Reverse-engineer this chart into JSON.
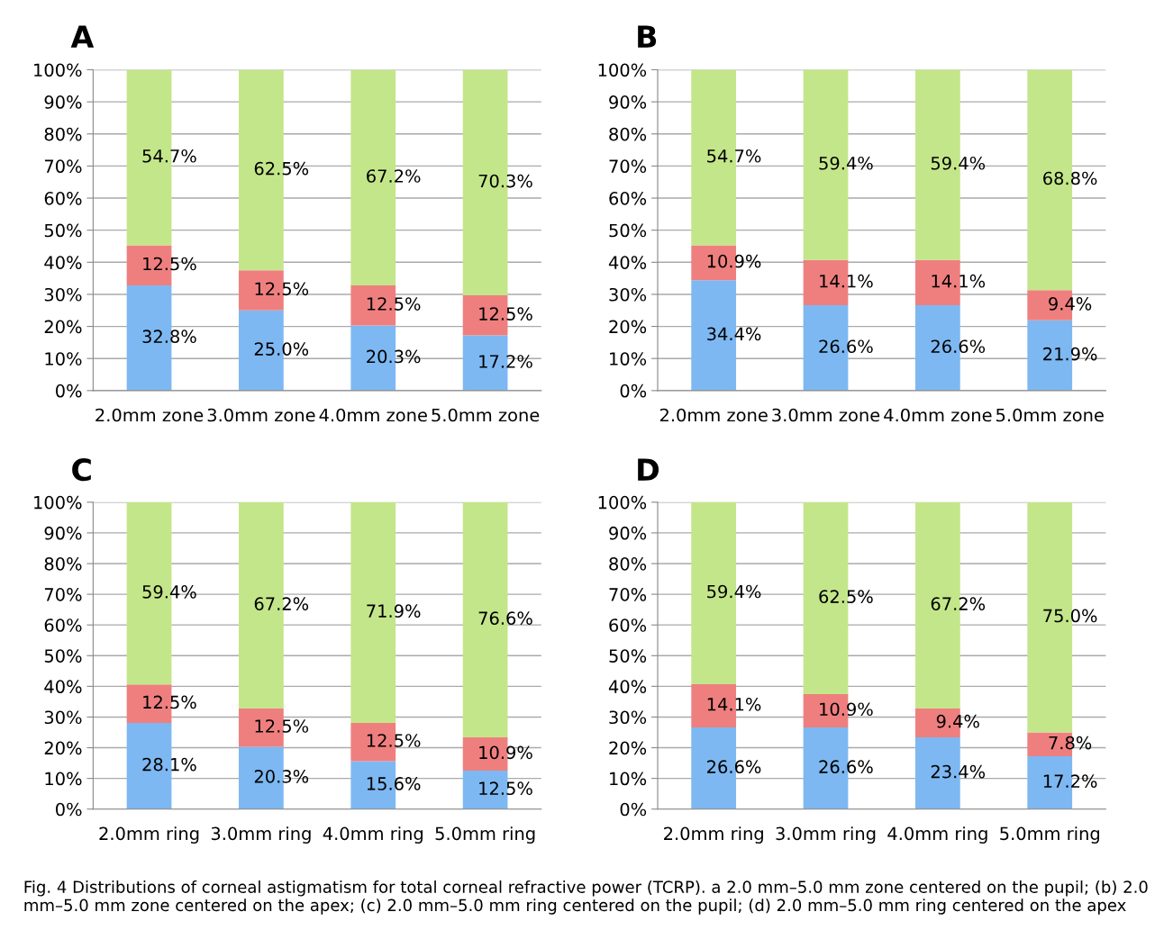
{
  "chart_data": [
    {
      "type": "bar",
      "stacked": true,
      "title": "A",
      "categories": [
        "2.0mm zone",
        "3.0mm zone",
        "4.0mm zone",
        "5.0mm zone"
      ],
      "ylim": [
        0,
        100
      ],
      "yticks": [
        {
          "value": 0,
          "label": "0%"
        },
        {
          "value": 10,
          "label": "10%"
        },
        {
          "value": 20,
          "label": "20%"
        },
        {
          "value": 30,
          "label": "30%"
        },
        {
          "value": 40,
          "label": "40%"
        },
        {
          "value": 50,
          "label": "50%"
        },
        {
          "value": 60,
          "label": "60%"
        },
        {
          "value": 70,
          "label": "70%"
        },
        {
          "value": 80,
          "label": "80%"
        },
        {
          "value": 90,
          "label": "90%"
        },
        {
          "value": 100,
          "label": "100%"
        }
      ],
      "grid": "y",
      "legend": false,
      "series": [
        {
          "color": "#7db8f2",
          "values": [
            32.8,
            25.0,
            20.3,
            17.2
          ],
          "value_labels": [
            "32.8%",
            "25.0%",
            "20.3%",
            "17.2%"
          ]
        },
        {
          "color": "#ef7f7f",
          "values": [
            12.5,
            12.5,
            12.5,
            12.5
          ],
          "value_labels": [
            "12.5%",
            "12.5%",
            "12.5%",
            "12.5%"
          ]
        },
        {
          "color": "#c4e68a",
          "values": [
            54.7,
            62.5,
            67.2,
            70.3
          ],
          "value_labels": [
            "54.7%",
            "62.5%",
            "67.2%",
            "70.3%"
          ]
        }
      ]
    },
    {
      "type": "bar",
      "stacked": true,
      "title": "B",
      "categories": [
        "2.0mm zone",
        "3.0mm zone",
        "4.0mm zone",
        "5.0mm zone"
      ],
      "ylim": [
        0,
        100
      ],
      "yticks": [
        {
          "value": 0,
          "label": "0%"
        },
        {
          "value": 10,
          "label": "10%"
        },
        {
          "value": 20,
          "label": "20%"
        },
        {
          "value": 30,
          "label": "30%"
        },
        {
          "value": 40,
          "label": "40%"
        },
        {
          "value": 50,
          "label": "50%"
        },
        {
          "value": 60,
          "label": "60%"
        },
        {
          "value": 70,
          "label": "70%"
        },
        {
          "value": 80,
          "label": "80%"
        },
        {
          "value": 90,
          "label": "90%"
        },
        {
          "value": 100,
          "label": "100%"
        }
      ],
      "grid": "y",
      "legend": false,
      "series": [
        {
          "color": "#7db8f2",
          "values": [
            34.4,
            26.6,
            26.6,
            21.9
          ],
          "value_labels": [
            "34.4%",
            "26.6%",
            "26.6%",
            "21.9%"
          ]
        },
        {
          "color": "#ef7f7f",
          "values": [
            10.9,
            14.1,
            14.1,
            9.4
          ],
          "value_labels": [
            "10.9%",
            "14.1%",
            "14.1%",
            "9.4%"
          ]
        },
        {
          "color": "#c4e68a",
          "values": [
            54.7,
            59.4,
            59.4,
            68.8
          ],
          "value_labels": [
            "54.7%",
            "59.4%",
            "59.4%",
            "68.8%"
          ]
        }
      ]
    },
    {
      "type": "bar",
      "stacked": true,
      "title": "C",
      "categories": [
        "2.0mm ring",
        "3.0mm ring",
        "4.0mm ring",
        "5.0mm ring"
      ],
      "ylim": [
        0,
        100
      ],
      "yticks": [
        {
          "value": 0,
          "label": "0%"
        },
        {
          "value": 10,
          "label": "10%"
        },
        {
          "value": 20,
          "label": "20%"
        },
        {
          "value": 30,
          "label": "30%"
        },
        {
          "value": 40,
          "label": "40%"
        },
        {
          "value": 50,
          "label": "50%"
        },
        {
          "value": 60,
          "label": "60%"
        },
        {
          "value": 70,
          "label": "70%"
        },
        {
          "value": 80,
          "label": "80%"
        },
        {
          "value": 90,
          "label": "90%"
        },
        {
          "value": 100,
          "label": "100%"
        }
      ],
      "grid": "y",
      "legend": false,
      "series": [
        {
          "color": "#7db8f2",
          "values": [
            28.1,
            20.3,
            15.6,
            12.5
          ],
          "value_labels": [
            "28.1%",
            "20.3%",
            "15.6%",
            "12.5%"
          ]
        },
        {
          "color": "#ef7f7f",
          "values": [
            12.5,
            12.5,
            12.5,
            10.9
          ],
          "value_labels": [
            "12.5%",
            "12.5%",
            "12.5%",
            "10.9%"
          ]
        },
        {
          "color": "#c4e68a",
          "values": [
            59.4,
            67.2,
            71.9,
            76.6
          ],
          "value_labels": [
            "59.4%",
            "67.2%",
            "71.9%",
            "76.6%"
          ]
        }
      ]
    },
    {
      "type": "bar",
      "stacked": true,
      "title": "D",
      "categories": [
        "2.0mm ring",
        "3.0mm ring",
        "4.0mm ring",
        "5.0mm ring"
      ],
      "ylim": [
        0,
        100
      ],
      "yticks": [
        {
          "value": 0,
          "label": "0%"
        },
        {
          "value": 10,
          "label": "10%"
        },
        {
          "value": 20,
          "label": "20%"
        },
        {
          "value": 30,
          "label": "30%"
        },
        {
          "value": 40,
          "label": "40%"
        },
        {
          "value": 50,
          "label": "50%"
        },
        {
          "value": 60,
          "label": "60%"
        },
        {
          "value": 70,
          "label": "70%"
        },
        {
          "value": 80,
          "label": "80%"
        },
        {
          "value": 90,
          "label": "90%"
        },
        {
          "value": 100,
          "label": "100%"
        }
      ],
      "grid": "y",
      "legend": false,
      "series": [
        {
          "color": "#7db8f2",
          "values": [
            26.6,
            26.6,
            23.4,
            17.2
          ],
          "value_labels": [
            "26.6%",
            "26.6%",
            "23.4%",
            "17.2%"
          ]
        },
        {
          "color": "#ef7f7f",
          "values": [
            14.1,
            10.9,
            9.4,
            7.8
          ],
          "value_labels": [
            "14.1%",
            "10.9%",
            "9.4%",
            "7.8%"
          ]
        },
        {
          "color": "#c4e68a",
          "values": [
            59.4,
            62.5,
            67.2,
            75.0
          ],
          "value_labels": [
            "59.4%",
            "62.5%",
            "67.2%",
            "75.0%"
          ]
        }
      ],
      "annotations": [
        "Fig. 4 Distributions of corneal astigmatism for total corneal refractive power (TCRP). a 2.0 mm–5.0 mm zone centered on the pupil; (b) 2.0 mm–5.0 mm zone centered on the apex; (c) 2.0 mm–5.0 mm ring centered on the pupil; (d) 2.0 mm–5.0 mm ring centered on the apex"
      ]
    }
  ]
}
